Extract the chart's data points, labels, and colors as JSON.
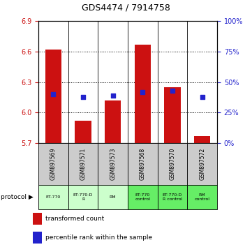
{
  "title": "GDS4474 / 7914758",
  "samples": [
    "GSM897569",
    "GSM897571",
    "GSM897573",
    "GSM897568",
    "GSM897570",
    "GSM897572"
  ],
  "bar_values": [
    6.62,
    5.92,
    6.12,
    6.67,
    6.25,
    5.77
  ],
  "bar_baseline": 5.7,
  "percentile_values": [
    40,
    38,
    39,
    42,
    43,
    38
  ],
  "ylim_left": [
    5.7,
    6.9
  ],
  "yticks_left": [
    5.7,
    6.0,
    6.3,
    6.6,
    6.9
  ],
  "ylim_right": [
    0,
    100
  ],
  "yticks_right": [
    0,
    25,
    50,
    75,
    100
  ],
  "bar_color": "#cc1111",
  "dot_color": "#2222cc",
  "bar_width": 0.55,
  "protocols": [
    "ET-770",
    "ET-770-D\nR",
    "RM",
    "ET-770\ncontrol",
    "ET-770-D\nR control",
    "RM\ncontrol"
  ],
  "protocol_colors_light": "#ccffcc",
  "protocol_colors_dark": "#66ee66",
  "legend_bar_label": "transformed count",
  "legend_dot_label": "percentile rank within the sample",
  "bg_color": "#ffffff",
  "plot_area_bg": "#ffffff",
  "sample_box_color": "#cccccc",
  "left_tick_color": "#cc1111",
  "right_tick_color": "#2222cc",
  "grid_yticks": [
    6.0,
    6.3,
    6.6
  ]
}
